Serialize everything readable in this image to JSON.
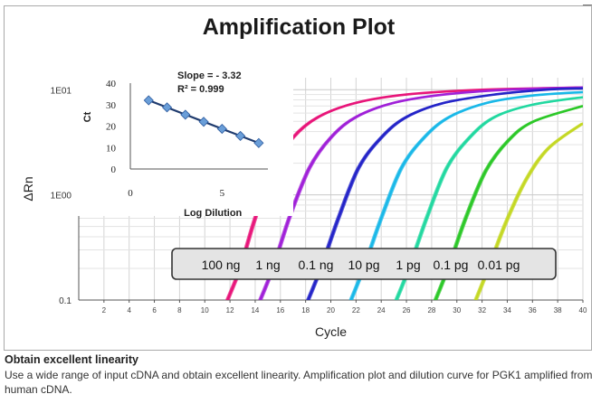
{
  "chart_data": [
    {
      "type": "line",
      "title": "Amplification Plot",
      "xlabel": "Cycle",
      "ylabel": "ΔRn",
      "yscale": "log",
      "xlim": [
        0,
        40
      ],
      "ylim": [
        0.1,
        13
      ],
      "xticks": [
        "2",
        "4",
        "6",
        "8",
        "10",
        "12",
        "14",
        "16",
        "18",
        "20",
        "22",
        "24",
        "26",
        "28",
        "30",
        "32",
        "34",
        "36",
        "38",
        "40"
      ],
      "yticks": [
        {
          "value": 0.1,
          "label": "0.1"
        },
        {
          "value": 1,
          "label": "1E00"
        },
        {
          "value": 10,
          "label": "1E01"
        }
      ],
      "grid": true,
      "legend_label": [
        "100 ng",
        "1 ng",
        "0.1 ng",
        "10 pg",
        "1 pg",
        "0.1 pg",
        "0.01 pg"
      ],
      "series": [
        {
          "color": "#e8157a",
          "values": [
            [
              11.8,
              0.1
            ],
            [
              12.8,
              0.2
            ],
            [
              14,
              0.6
            ],
            [
              15.5,
              1.8
            ],
            [
              17,
              3.5
            ],
            [
              19,
              5.5
            ],
            [
              22,
              7.5
            ],
            [
              26,
              9
            ],
            [
              32,
              10
            ],
            [
              40,
              10.5
            ]
          ]
        },
        {
          "color": "#a020d8",
          "values": [
            [
              14.4,
              0.1
            ],
            [
              15.4,
              0.2
            ],
            [
              16.7,
              0.6
            ],
            [
              18.3,
              1.8
            ],
            [
              20,
              3.5
            ],
            [
              22,
              5.5
            ],
            [
              25,
              7.5
            ],
            [
              29,
              9
            ],
            [
              34,
              10
            ],
            [
              40,
              10.5
            ]
          ]
        },
        {
          "color": "#2424c8",
          "values": [
            [
              18.2,
              0.1
            ],
            [
              19.2,
              0.2
            ],
            [
              20.6,
              0.6
            ],
            [
              22.2,
              1.8
            ],
            [
              24,
              3.5
            ],
            [
              26,
              5.5
            ],
            [
              29,
              7.5
            ],
            [
              33,
              9
            ],
            [
              37,
              10
            ],
            [
              40,
              10.3
            ]
          ]
        },
        {
          "color": "#1ab8e8",
          "values": [
            [
              21.6,
              0.1
            ],
            [
              22.6,
              0.2
            ],
            [
              24,
              0.6
            ],
            [
              25.6,
              1.8
            ],
            [
              27.4,
              3.5
            ],
            [
              29.4,
              5.5
            ],
            [
              32.4,
              7.5
            ],
            [
              36,
              8.8
            ],
            [
              40,
              9.5
            ]
          ]
        },
        {
          "color": "#22d8a0",
          "values": [
            [
              25.2,
              0.1
            ],
            [
              26.2,
              0.2
            ],
            [
              27.6,
              0.6
            ],
            [
              29.2,
              1.8
            ],
            [
              31,
              3.5
            ],
            [
              33,
              5.5
            ],
            [
              36,
              7.2
            ],
            [
              40,
              8.5
            ]
          ]
        },
        {
          "color": "#2cc828",
          "values": [
            [
              28.3,
              0.1
            ],
            [
              29.3,
              0.2
            ],
            [
              30.7,
              0.6
            ],
            [
              32.3,
              1.7
            ],
            [
              34.1,
              3.3
            ],
            [
              36.1,
              5.0
            ],
            [
              40,
              7.0
            ]
          ]
        },
        {
          "color": "#c4d824",
          "values": [
            [
              31.5,
              0.1
            ],
            [
              32.5,
              0.2
            ],
            [
              33.9,
              0.55
            ],
            [
              35.5,
              1.4
            ],
            [
              37.3,
              2.8
            ],
            [
              40,
              4.8
            ]
          ]
        }
      ]
    },
    {
      "type": "scatter",
      "xlabel": "Log Dilution",
      "ylabel": "Ct",
      "xlim": [
        0,
        7.5
      ],
      "ylim": [
        0,
        40
      ],
      "xticks": [
        0,
        5
      ],
      "yticks": [
        0,
        10,
        20,
        30,
        40
      ],
      "annotations": [
        "Slope = - 3.32",
        "R² = 0.999"
      ],
      "x": [
        1,
        2,
        3,
        4,
        5,
        6,
        7
      ],
      "y": [
        32.0,
        28.7,
        25.3,
        22.0,
        18.7,
        15.4,
        12.1
      ],
      "fit": {
        "slope": -3.32,
        "intercept": 35.3
      },
      "marker_color": "#6a9ed8",
      "line_color": "#1f3b6e"
    }
  ],
  "caption": {
    "title": "Obtain excellent linearity",
    "body": "Use a wide range of input cDNA and obtain excellent linearity. Amplification plot and dilution curve for PGK1 amplified from human cDNA."
  }
}
